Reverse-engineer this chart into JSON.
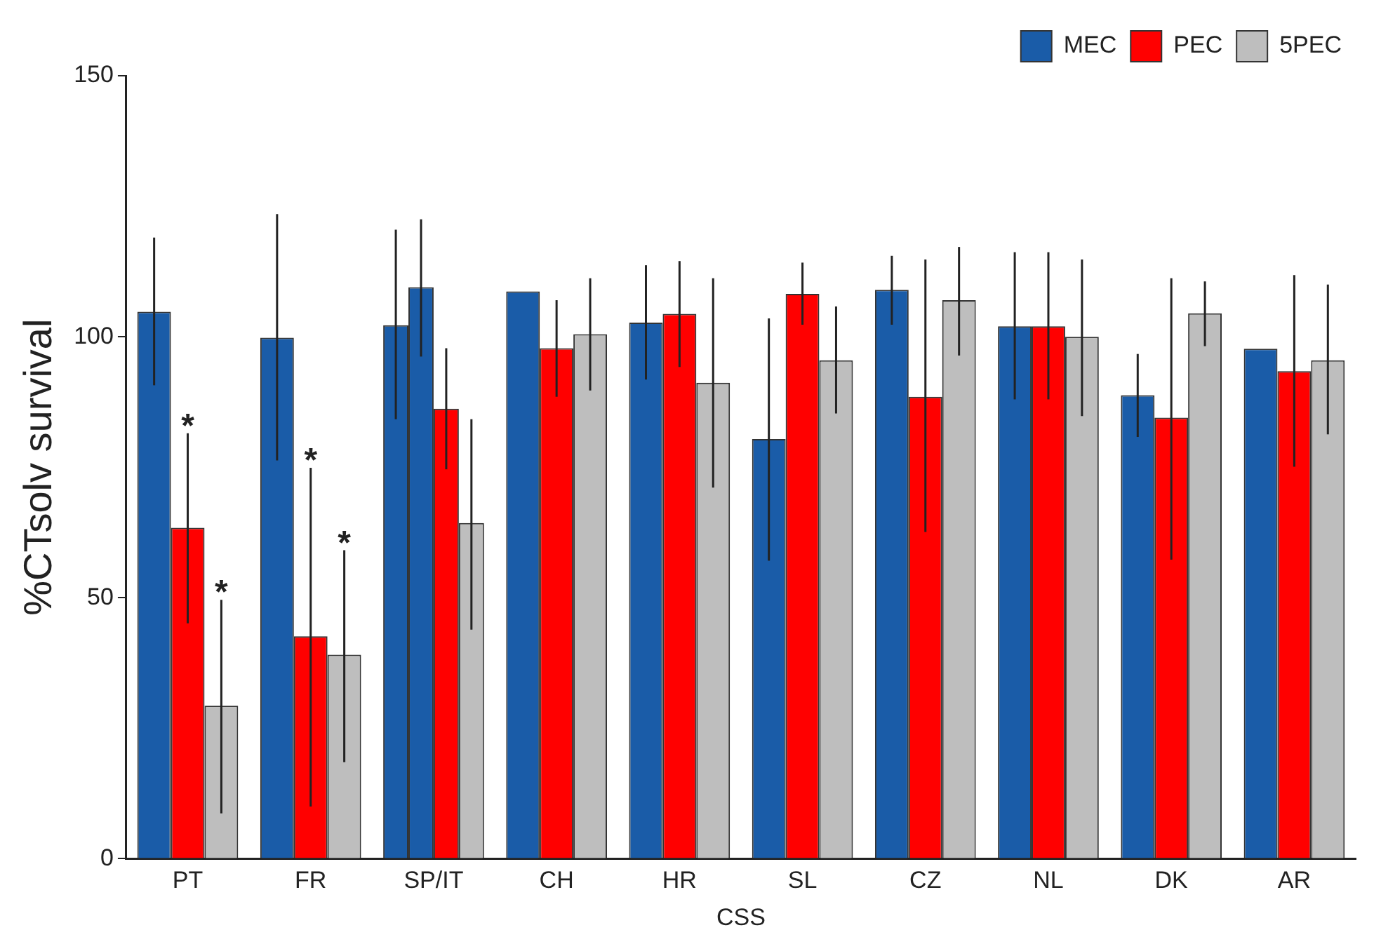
{
  "chart_data": {
    "type": "bar",
    "xlabel": "CSS",
    "ylabel": "%CTsolv survival",
    "categories": [
      "PT",
      "FR",
      "SP/IT",
      "CH",
      "HR",
      "SL",
      "CZ",
      "NL",
      "DK",
      "AR"
    ],
    "series": [
      {
        "name": "MEC",
        "color": "#1a5ca8",
        "values": [
          104.8,
          99.8,
          102.2,
          108.7,
          102.7,
          80.4,
          109,
          102,
          88.8,
          97.7
        ],
        "errors": [
          [
            90.7,
            119
          ],
          [
            76.3,
            123.5
          ],
          [
            84.2,
            120.5
          ],
          null,
          [
            91.8,
            113.7
          ],
          [
            57.1,
            103.5
          ],
          [
            102.3,
            115.5
          ],
          [
            88,
            116.2
          ],
          [
            80.8,
            96.7
          ],
          null
        ]
      },
      {
        "color": "#1a5ca8",
        "values": [
          null,
          null,
          109.5,
          null,
          null,
          null,
          null,
          null,
          null,
          null
        ],
        "errors": [
          null,
          null,
          [
            96.2,
            122.5
          ],
          null,
          null,
          null,
          null,
          null,
          null,
          null
        ]
      },
      {
        "name": "PEC",
        "color": "#ff0000",
        "values": [
          63.4,
          42.6,
          86.2,
          97.8,
          104.4,
          108.2,
          88.5,
          102,
          84.5,
          93.4
        ],
        "errors": [
          [
            45.1,
            81.5
          ],
          [
            10,
            74.9
          ],
          [
            74.6,
            97.8
          ],
          [
            88.5,
            107
          ],
          [
            94.2,
            114.5
          ],
          [
            102.3,
            114.2
          ],
          [
            62.6,
            114.8
          ],
          [
            88,
            116.2
          ],
          [
            57.3,
            111.2
          ],
          [
            75.1,
            111.8
          ]
        ]
      },
      {
        "name": "5PEC",
        "color": "#bebebe",
        "values": [
          29.3,
          39.1,
          64.3,
          100.5,
          91.2,
          95.5,
          107,
          100,
          104.5,
          95.5
        ],
        "errors": [
          [
            8.7,
            49.6
          ],
          [
            18.5,
            59.1
          ],
          [
            43.9,
            84.2
          ],
          [
            89.7,
            111.2
          ],
          [
            71.1,
            111.2
          ],
          [
            85.3,
            105.8
          ],
          [
            96.4,
            117.2
          ],
          [
            84.8,
            114.8
          ],
          [
            98.2,
            110.6
          ],
          [
            81.3,
            110
          ]
        ]
      }
    ],
    "annotations": [
      {
        "text": "*",
        "x": "PT",
        "y": 81.5
      },
      {
        "text": "*",
        "x": "PT",
        "y": 49.6
      },
      {
        "text": "*",
        "x": "FR",
        "y": 74.9
      },
      {
        "text": "*",
        "x": "FR",
        "y": 59.1
      }
    ],
    "ylim": [
      0,
      150
    ],
    "yticks": [
      0,
      50,
      100,
      150
    ],
    "grid": false,
    "legend": "top right"
  }
}
